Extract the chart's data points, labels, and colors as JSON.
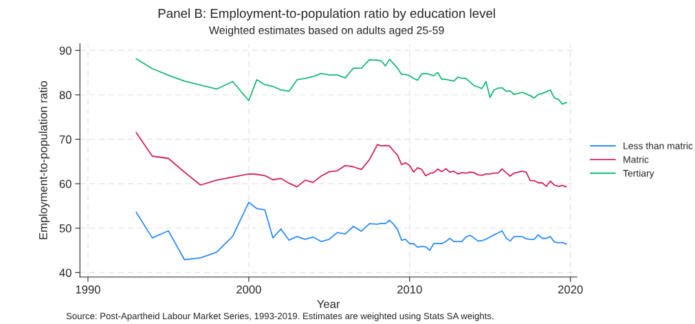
{
  "chart_data": {
    "type": "line",
    "title": "Panel B: Employment-to-population ratio by education level",
    "subtitle": "Weighted estimates based on adults aged 25-59",
    "xlabel": "Year",
    "ylabel": "Employment-to-population ratio",
    "x": [
      1993,
      1994,
      1995,
      1996,
      1997,
      1998,
      1999,
      2000,
      2000.5,
      2001,
      2001.5,
      2002,
      2002.5,
      2003,
      2003.5,
      2004,
      2004.5,
      2005,
      2005.5,
      2006,
      2006.5,
      2007,
      2007.5,
      2008,
      2008.25,
      2008.5,
      2008.75,
      2009,
      2009.25,
      2009.5,
      2009.75,
      2010,
      2010.25,
      2010.5,
      2010.75,
      2011,
      2011.25,
      2011.5,
      2011.75,
      2012,
      2012.25,
      2012.5,
      2012.75,
      2013,
      2013.25,
      2013.5,
      2013.75,
      2014,
      2014.25,
      2014.5,
      2014.75,
      2015,
      2015.25,
      2015.5,
      2015.75,
      2016,
      2016.25,
      2016.5,
      2016.75,
      2017,
      2017.25,
      2017.5,
      2017.75,
      2018,
      2018.25,
      2018.5,
      2018.75,
      2019,
      2019.25,
      2019.5,
      2019.75
    ],
    "series": [
      {
        "name": "Less than matric",
        "color": "#2b8cff",
        "values": [
          53.6,
          47.8,
          49.4,
          42.9,
          43.3,
          44.6,
          48.2,
          55.8,
          54.4,
          54.1,
          47.8,
          49.8,
          47.3,
          48.1,
          47.5,
          48.0,
          47.0,
          47.5,
          49.0,
          48.7,
          50.4,
          49.3,
          51.0,
          50.9,
          51.1,
          51.0,
          51.8,
          50.9,
          49.7,
          47.3,
          47.5,
          46.5,
          46.5,
          45.7,
          45.9,
          45.8,
          45.0,
          46.5,
          46.6,
          46.5,
          47.0,
          47.7,
          47.0,
          47.0,
          47.0,
          48.0,
          48.4,
          47.8,
          47.1,
          47.2,
          47.5,
          48.0,
          48.5,
          48.9,
          49.4,
          47.8,
          47.1,
          48.1,
          48.1,
          48.1,
          47.6,
          47.5,
          47.5,
          48.5,
          47.7,
          47.7,
          48.1,
          46.9,
          46.7,
          46.8,
          46.4
        ]
      },
      {
        "name": "Matric",
        "color": "#d6205a",
        "values": [
          71.5,
          66.2,
          65.7,
          62.6,
          59.7,
          60.8,
          61.5,
          62.2,
          62.1,
          61.8,
          60.9,
          61.2,
          60.1,
          59.3,
          60.8,
          60.3,
          61.7,
          62.7,
          62.9,
          64.1,
          63.8,
          63.2,
          65.4,
          68.8,
          68.5,
          68.6,
          68.5,
          67.4,
          66.4,
          64.3,
          64.7,
          64.1,
          62.6,
          63.6,
          63.2,
          61.8,
          62.3,
          62.5,
          63.3,
          62.7,
          63.4,
          62.6,
          62.8,
          62.2,
          62.5,
          62.4,
          62.6,
          62.5,
          62.0,
          61.9,
          62.2,
          62.2,
          62.4,
          62.4,
          63.3,
          62.5,
          61.7,
          62.4,
          62.6,
          62.8,
          62.6,
          60.7,
          60.7,
          60.2,
          60.2,
          59.4,
          60.6,
          59.7,
          59.4,
          59.6,
          59.3
        ]
      },
      {
        "name": "Tertiary",
        "color": "#17b978",
        "values": [
          88.1,
          85.9,
          84.4,
          83.1,
          82.2,
          81.3,
          83.0,
          78.7,
          83.4,
          82.3,
          81.9,
          81.1,
          80.8,
          83.4,
          83.7,
          84.1,
          84.8,
          84.5,
          84.5,
          83.8,
          86.0,
          86.0,
          87.9,
          87.8,
          87.6,
          86.5,
          88.0,
          87.0,
          86.0,
          84.6,
          84.6,
          84.3,
          83.7,
          83.3,
          84.7,
          84.8,
          84.6,
          84.3,
          85.0,
          83.5,
          83.5,
          83.3,
          83.1,
          84.0,
          83.7,
          83.7,
          82.9,
          82.1,
          81.8,
          81.4,
          83.0,
          79.4,
          81.1,
          81.5,
          81.6,
          80.8,
          80.9,
          80.1,
          80.3,
          80.6,
          80.2,
          79.8,
          79.3,
          80.1,
          80.3,
          80.7,
          81.1,
          79.3,
          79.0,
          77.9,
          78.3
        ]
      }
    ],
    "xlim": [
      1989.5,
      2020.4
    ],
    "xticks": [
      1990,
      2000,
      2010,
      2020
    ],
    "ylim": [
      39,
      91.5
    ],
    "yticks": [
      40,
      50,
      60,
      70,
      80,
      90
    ],
    "grid": true,
    "legend": "right",
    "marker": "none",
    "line_style": "solid",
    "annotations": [
      "Source: Post-Apartheid Labour Market Series, 1993-2019. Estimates are weighted using Stats SA weights."
    ]
  }
}
